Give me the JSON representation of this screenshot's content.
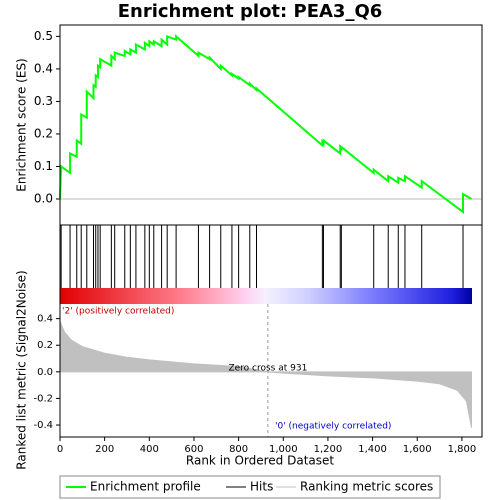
{
  "chart_data": [
    {
      "type": "line",
      "title": "Enrichment plot: PEA3_Q6",
      "ylabel": "Enrichment score (ES)",
      "x": [
        0,
        5,
        45,
        45,
        75,
        75,
        95,
        95,
        120,
        120,
        150,
        150,
        160,
        160,
        170,
        170,
        180,
        180,
        230,
        230,
        245,
        245,
        290,
        290,
        315,
        315,
        340,
        340,
        380,
        380,
        400,
        400,
        420,
        420,
        455,
        455,
        480,
        480,
        520,
        520,
        620,
        620,
        670,
        670,
        720,
        720,
        770,
        770,
        800,
        800,
        850,
        850,
        880,
        880,
        1175,
        1175,
        1180,
        1180,
        1255,
        1255,
        1260,
        1260,
        1405,
        1405,
        1470,
        1470,
        1515,
        1515,
        1545,
        1545,
        1620,
        1620,
        1805,
        1805,
        1843
      ],
      "series": [
        {
          "name": "Enrichment profile",
          "color": "#00ff00",
          "values": [
            0,
            0.1,
            0.08,
            0.14,
            0.13,
            0.18,
            0.17,
            0.26,
            0.25,
            0.33,
            0.31,
            0.35,
            0.345,
            0.38,
            0.375,
            0.41,
            0.405,
            0.43,
            0.41,
            0.44,
            0.43,
            0.45,
            0.44,
            0.455,
            0.445,
            0.46,
            0.45,
            0.475,
            0.46,
            0.48,
            0.47,
            0.485,
            0.475,
            0.485,
            0.47,
            0.49,
            0.475,
            0.5,
            0.49,
            0.5,
            0.44,
            0.45,
            0.43,
            0.435,
            0.4,
            0.41,
            0.38,
            0.385,
            0.37,
            0.375,
            0.35,
            0.355,
            0.335,
            0.34,
            0.165,
            0.175,
            0.17,
            0.18,
            0.14,
            0.16,
            0.155,
            0.16,
            0.08,
            0.09,
            0.055,
            0.07,
            0.05,
            0.065,
            0.055,
            0.07,
            0.035,
            0.055,
            -0.04,
            0.015,
            0
          ]
        }
      ],
      "xlim": [
        0,
        1890
      ],
      "ylim": [
        -0.08,
        0.535
      ],
      "yticks": [
        {
          "value": 0,
          "label": "0.0"
        },
        0.1,
        0.2,
        0.3,
        0.4,
        0.5
      ]
    },
    {
      "type": "rug",
      "series": [
        {
          "name": "Hits",
          "color": "#000000",
          "values": [
            5,
            45,
            75,
            95,
            120,
            150,
            160,
            170,
            180,
            230,
            245,
            290,
            315,
            340,
            380,
            400,
            420,
            455,
            480,
            520,
            620,
            670,
            720,
            770,
            800,
            850,
            880,
            1175,
            1180,
            1255,
            1260,
            1405,
            1470,
            1515,
            1545,
            1620,
            1805
          ]
        }
      ],
      "xlim": [
        0,
        1890
      ]
    },
    {
      "type": "area",
      "ylabel": "Ranked list metric (Signal2Noise)",
      "xlabel": "Rank in Ordered Dataset",
      "x": [
        0,
        20,
        50,
        100,
        200,
        300,
        400,
        600,
        800,
        931,
        1000,
        1200,
        1400,
        1600,
        1700,
        1780,
        1820,
        1843
      ],
      "series": [
        {
          "name": "Ranking metric scores",
          "color": "#c0c0c0",
          "values": [
            0.38,
            0.3,
            0.24,
            0.19,
            0.14,
            0.11,
            0.09,
            0.06,
            0.04,
            0,
            -0.01,
            -0.03,
            -0.045,
            -0.07,
            -0.09,
            -0.14,
            -0.22,
            -0.42
          ]
        }
      ],
      "xlim": [
        0,
        1890
      ],
      "ylim": [
        -0.49,
        0.51
      ],
      "yticks": [
        -0.4,
        -0.2,
        {
          "value": 0,
          "label": "0.0"
        },
        0.2,
        0.4
      ],
      "xticks": [
        0,
        200,
        400,
        600,
        800,
        {
          "value": 1000,
          "label": "1,000"
        },
        {
          "value": 1200,
          "label": "1,200"
        },
        {
          "value": 1400,
          "label": "1,400"
        },
        {
          "value": 1600,
          "label": "1,600"
        },
        {
          "value": 1800,
          "label": "1,800"
        }
      ],
      "annotation": {
        "text": "Zero cross at 931",
        "x": 931
      },
      "positive_label": "'2' (positively correlated)",
      "negative_label": "'0' (negatively correlated)"
    }
  ]
}
